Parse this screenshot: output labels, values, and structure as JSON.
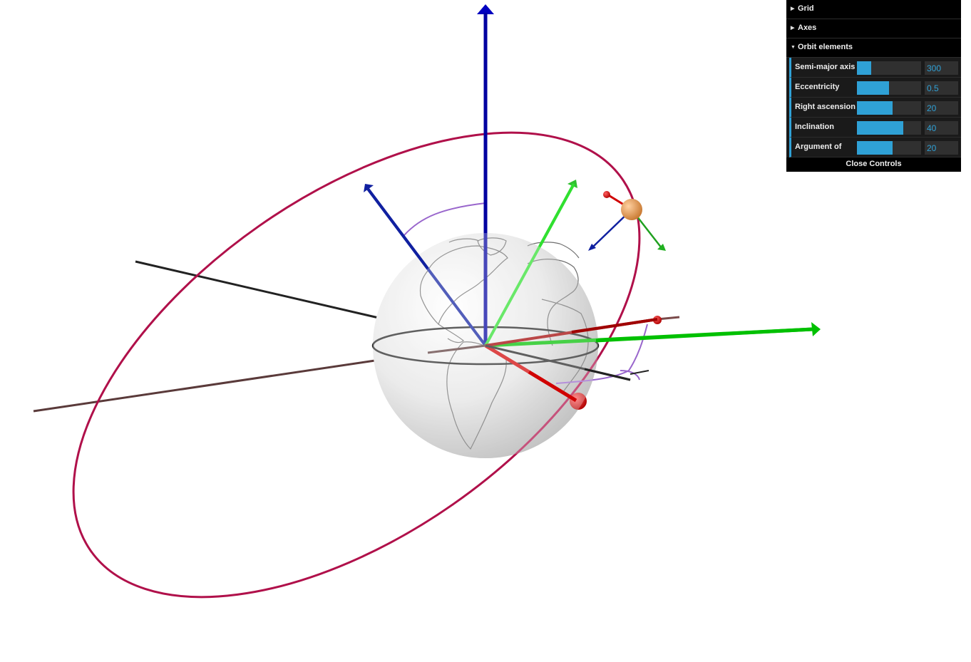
{
  "scene": {
    "icons": [
      "earth-globe",
      "satellite-sphere"
    ],
    "colors": {
      "x_axis": "#e00000",
      "y_axis": "#00c000",
      "z_axis": "#0000a0",
      "orbit": "#b0104a",
      "angle_arc": "#9966cc",
      "line_of_nodes": "#222222",
      "equator": "#222222",
      "satellite": "#e8944a"
    }
  },
  "gui": {
    "folders": [
      {
        "label": "Grid",
        "open": false
      },
      {
        "label": "Axes",
        "open": false
      },
      {
        "label": "Orbit elements",
        "open": true
      }
    ],
    "controls": [
      {
        "label": "Semi-major axis",
        "value": "300",
        "fraction": 0.22
      },
      {
        "label": "Eccentricity",
        "value": "0.5",
        "fraction": 0.5
      },
      {
        "label": "Right ascension o",
        "value": "20",
        "fraction": 0.56
      },
      {
        "label": "Inclination",
        "value": "40",
        "fraction": 0.72
      },
      {
        "label": "Argument of",
        "value": "20",
        "fraction": 0.56
      }
    ],
    "close_label": "Close Controls"
  }
}
